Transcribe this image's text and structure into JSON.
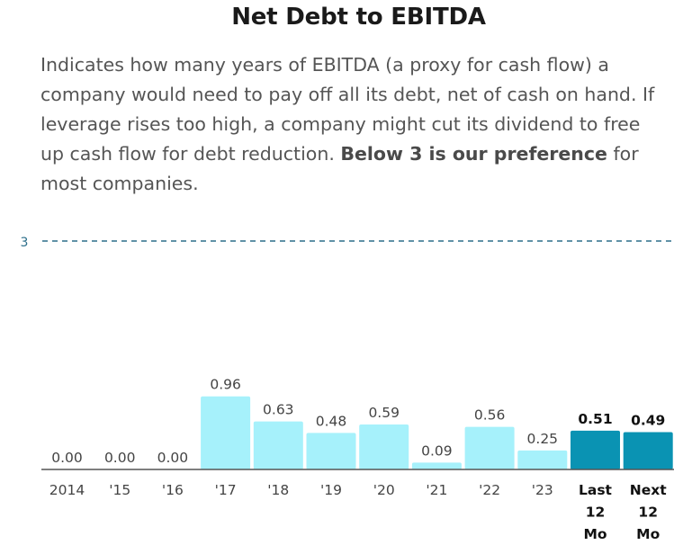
{
  "title": "Net Debt to EBITDA",
  "description": {
    "text": "Indicates how many years of EBITDA (a proxy for cash flow) a company would need to pay off all its debt, net of cash on hand. If leverage rises too high, a company might cut its dividend to free up cash flow for debt reduction. ",
    "emphasis": "Below 3 is our preference",
    "tail": " for most companies."
  },
  "chart_data": {
    "type": "bar",
    "categories": [
      "2014",
      "'15",
      "'16",
      "'17",
      "'18",
      "'19",
      "'20",
      "'21",
      "'22",
      "'23",
      "Last 12 Mo",
      "Next 12 Mo"
    ],
    "values": [
      0.0,
      0.0,
      0.0,
      0.96,
      0.63,
      0.48,
      0.59,
      0.09,
      0.56,
      0.25,
      0.51,
      0.49
    ],
    "value_labels": [
      "0.00",
      "0.00",
      "0.00",
      "0.96",
      "0.63",
      "0.48",
      "0.59",
      "0.09",
      "0.56",
      "0.25",
      "0.51",
      "0.49"
    ],
    "reference_line": {
      "value": 3,
      "label": "3"
    },
    "ylim": [
      0,
      3
    ],
    "colors": {
      "historical": "#a6f1fb",
      "projected": "#0a93b3",
      "reference": "#2c6e8a",
      "baseline": "#555555"
    },
    "projected_categories": [
      "Last 12 Mo",
      "Next 12 Mo"
    ]
  }
}
